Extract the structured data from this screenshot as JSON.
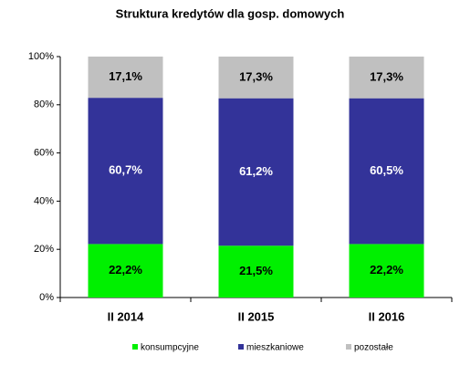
{
  "chart_data": {
    "type": "stacked_bar",
    "title": "Struktura kredytów dla gosp. domowych",
    "categories": [
      "II 2014",
      "II 2015",
      "II 2016"
    ],
    "series": [
      {
        "name": "konsumpcyjne",
        "color": "#00f000",
        "label_color": "#000000",
        "values": [
          22.2,
          21.5,
          22.2
        ],
        "value_labels": [
          "22,2%",
          "21,5%",
          "22,2%"
        ]
      },
      {
        "name": "mieszkaniowe",
        "color": "#333399",
        "label_color": "#ffffff",
        "values": [
          60.7,
          61.2,
          60.5
        ],
        "value_labels": [
          "60,7%",
          "61,2%",
          "60,5%"
        ]
      },
      {
        "name": "pozostałe",
        "color": "#c0c0c0",
        "label_color": "#000000",
        "values": [
          17.1,
          17.3,
          17.3
        ],
        "value_labels": [
          "17,1%",
          "17,3%",
          "17,3%"
        ]
      }
    ],
    "ylim": [
      0,
      100
    ],
    "yticks": [
      {
        "value": 0,
        "label": "0%"
      },
      {
        "value": 20,
        "label": "20%"
      },
      {
        "value": 40,
        "label": "40%"
      },
      {
        "value": 60,
        "label": "60%"
      },
      {
        "value": 80,
        "label": "80%"
      },
      {
        "value": 100,
        "label": "100%"
      }
    ],
    "grid": false,
    "legend": "bottom"
  }
}
